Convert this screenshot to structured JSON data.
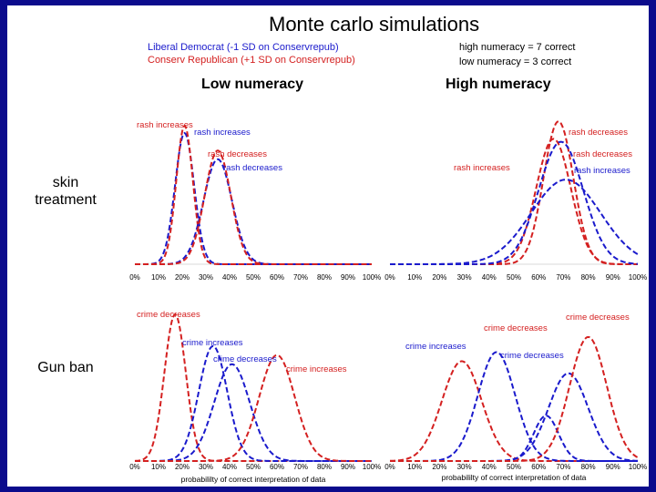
{
  "title": "Monte carlo simulations",
  "legend": {
    "liberal_label": "Liberal Democrat (-1 SD on Conservrepub)",
    "conserv_label": "Conserv Republican (+1 SD on Conservrepub)",
    "high_def": "high numeracy = 7 correct",
    "low_def": "low numeracy =  3 correct"
  },
  "column_headers": {
    "low": "Low numeracy",
    "high": "High numeracy"
  },
  "row_labels": {
    "skin_line1": "skin",
    "skin_line2": "treatment",
    "gun": "Gun ban"
  },
  "colors": {
    "democrat": "#1a1acc",
    "republican": "#d42020",
    "frame": "#0b0b8c"
  },
  "chart_data": [
    {
      "id": "skin-low",
      "type": "line",
      "title": "skin treatment / Low numeracy",
      "xlabel": "",
      "xlim": [
        0,
        100
      ],
      "x_tick_labels": [
        "0%",
        "10%",
        "20%",
        "30%",
        "40%",
        "50%",
        "60%",
        "70%",
        "80%",
        "90%",
        "100%"
      ],
      "series": [
        {
          "name": "Liberal Democrat",
          "color": "#1a1acc",
          "mean": 21,
          "sd": 4,
          "peak": 0.9
        },
        {
          "name": "Conserv Republican",
          "color": "#d42020",
          "mean": 21,
          "sd": 3.5,
          "peak": 0.95
        },
        {
          "name": "Liberal Democrat",
          "color": "#1a1acc",
          "mean": 35,
          "sd": 6,
          "peak": 0.72
        },
        {
          "name": "Conserv Republican",
          "color": "#d42020",
          "mean": 35,
          "sd": 5.5,
          "peak": 0.78
        }
      ],
      "annotations": [
        {
          "text": "rash increases",
          "color": "#d42020"
        },
        {
          "text": "rash increases",
          "color": "#1a1acc"
        },
        {
          "text": "rash decreases",
          "color": "#d42020"
        },
        {
          "text": "rash decreases",
          "color": "#1a1acc"
        }
      ]
    },
    {
      "id": "skin-high",
      "type": "line",
      "title": "skin treatment / High numeracy",
      "xlabel": "",
      "xlim": [
        0,
        100
      ],
      "x_tick_labels": [
        "0%",
        "10%",
        "20%",
        "30%",
        "40%",
        "50%",
        "60%",
        "70%",
        "80%",
        "90%",
        "100%"
      ],
      "series": [
        {
          "name": "Conserv Republican",
          "color": "#d42020",
          "mean": 68,
          "sd": 6,
          "peak": 0.98
        },
        {
          "name": "Conserv Republican",
          "color": "#d42020",
          "mean": 66,
          "sd": 7,
          "peak": 0.86
        },
        {
          "name": "Liberal Democrat",
          "color": "#1a1acc",
          "mean": 69,
          "sd": 9,
          "peak": 0.84
        },
        {
          "name": "Liberal Democrat",
          "color": "#1a1acc",
          "mean": 71,
          "sd": 14,
          "peak": 0.58
        }
      ],
      "annotations": [
        {
          "text": "rash decreases",
          "color": "#d42020"
        },
        {
          "text": "rash decreases",
          "color": "#d42020"
        },
        {
          "text": "rash increases",
          "color": "#d42020"
        },
        {
          "text": "rash increases",
          "color": "#1a1acc"
        }
      ]
    },
    {
      "id": "gun-low",
      "type": "line",
      "title": "Gun ban / Low numeracy",
      "xlabel": "probabililty of correct interpretation of data",
      "xlim": [
        0,
        100
      ],
      "x_tick_labels": [
        "0%",
        "10%",
        "20%",
        "30%",
        "40%",
        "50%",
        "60%",
        "70%",
        "80%",
        "90%",
        "100%"
      ],
      "series": [
        {
          "name": "Conserv Republican",
          "color": "#d42020",
          "mean": 17,
          "sd": 4.5,
          "peak": 0.97
        },
        {
          "name": "Liberal Democrat",
          "color": "#1a1acc",
          "mean": 33,
          "sd": 6,
          "peak": 0.76
        },
        {
          "name": "Liberal Democrat",
          "color": "#1a1acc",
          "mean": 41,
          "sd": 7.5,
          "peak": 0.64
        },
        {
          "name": "Conserv Republican",
          "color": "#d42020",
          "mean": 60,
          "sd": 7.5,
          "peak": 0.7
        }
      ],
      "annotations": [
        {
          "text": "crime decreases",
          "color": "#d42020"
        },
        {
          "text": "crime increases",
          "color": "#1a1acc"
        },
        {
          "text": "crime decreases",
          "color": "#1a1acc"
        },
        {
          "text": "crime increases",
          "color": "#d42020"
        }
      ]
    },
    {
      "id": "gun-high",
      "type": "line",
      "title": "Gun ban / High numeracy",
      "xlabel": "probabililty of correct interpretation of data",
      "xlim": [
        0,
        100
      ],
      "x_tick_labels": [
        "0%",
        "10%",
        "20%",
        "30%",
        "40%",
        "50%",
        "60%",
        "70%",
        "80%",
        "90%",
        "100%"
      ],
      "series": [
        {
          "name": "Conserv Republican",
          "color": "#d42020",
          "mean": 29,
          "sd": 8,
          "peak": 0.66
        },
        {
          "name": "Liberal Democrat",
          "color": "#1a1acc",
          "mean": 43,
          "sd": 7.5,
          "peak": 0.72
        },
        {
          "name": "Liberal Democrat",
          "color": "#1a1acc",
          "mean": 63,
          "sd": 5,
          "peak": 0.3
        },
        {
          "name": "Liberal Democrat",
          "color": "#1a1acc",
          "mean": 72,
          "sd": 8,
          "peak": 0.58
        },
        {
          "name": "Conserv Republican",
          "color": "#d42020",
          "mean": 80,
          "sd": 7.5,
          "peak": 0.82
        }
      ],
      "annotations": [
        {
          "text": "crime decreases",
          "color": "#d42020"
        },
        {
          "text": "crime increases",
          "color": "#1a1acc"
        },
        {
          "text": "crime decreases",
          "color": "#1a1acc"
        },
        {
          "text": "crime decreases",
          "color": "#d42020"
        }
      ]
    }
  ]
}
